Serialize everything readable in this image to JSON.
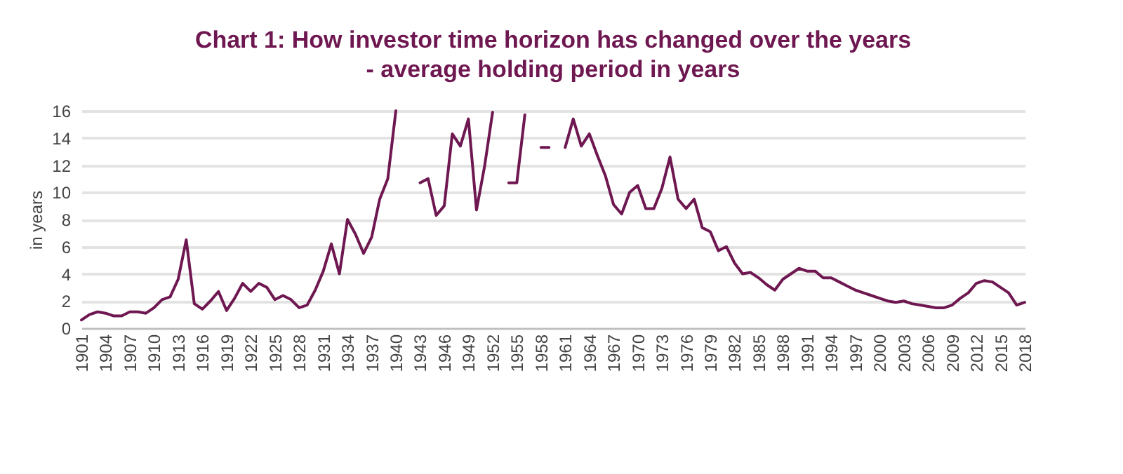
{
  "chart_data": {
    "type": "line",
    "title": "Chart 1: How investor time horizon has changed over the years",
    "subtitle": "- average holding period in years",
    "ylabel": "in years",
    "x": [
      1901,
      1902,
      1903,
      1904,
      1905,
      1906,
      1907,
      1908,
      1909,
      1910,
      1911,
      1912,
      1913,
      1914,
      1915,
      1916,
      1917,
      1918,
      1919,
      1920,
      1921,
      1922,
      1923,
      1924,
      1925,
      1926,
      1927,
      1928,
      1929,
      1930,
      1931,
      1932,
      1933,
      1934,
      1935,
      1936,
      1937,
      1938,
      1939,
      1940,
      1941,
      1942,
      1943,
      1944,
      1945,
      1946,
      1947,
      1948,
      1949,
      1950,
      1951,
      1952,
      1953,
      1954,
      1955,
      1956,
      1957,
      1958,
      1959,
      1960,
      1961,
      1962,
      1963,
      1964,
      1965,
      1966,
      1967,
      1968,
      1969,
      1970,
      1971,
      1972,
      1973,
      1974,
      1975,
      1976,
      1977,
      1978,
      1979,
      1980,
      1981,
      1982,
      1983,
      1984,
      1985,
      1986,
      1987,
      1988,
      1989,
      1990,
      1991,
      1992,
      1993,
      1994,
      1995,
      1996,
      1997,
      1998,
      1999,
      2000,
      2001,
      2002,
      2003,
      2004,
      2005,
      2006,
      2007,
      2008,
      2009,
      2010,
      2011,
      2012,
      2013,
      2014,
      2015,
      2016,
      2017,
      2018
    ],
    "series": [
      {
        "color": "#6e1750",
        "values": [
          0.6,
          1.0,
          1.2,
          1.1,
          0.9,
          0.9,
          1.2,
          1.2,
          1.1,
          1.5,
          2.1,
          2.3,
          3.6,
          6.5,
          1.8,
          1.4,
          2.0,
          2.7,
          1.3,
          2.2,
          3.3,
          2.7,
          3.3,
          3.0,
          2.1,
          2.4,
          2.1,
          1.5,
          1.7,
          2.8,
          4.2,
          6.2,
          4.0,
          8.0,
          6.9,
          5.5,
          6.7,
          9.5,
          11.0,
          16.0,
          null,
          null,
          10.7,
          11.0,
          8.3,
          9.0,
          14.3,
          13.4,
          15.4,
          8.7,
          11.9,
          15.9,
          null,
          10.7,
          10.7,
          15.7,
          null,
          13.3,
          13.3,
          null,
          13.3,
          15.4,
          13.4,
          14.3,
          12.7,
          11.2,
          9.1,
          8.4,
          10.0,
          10.5,
          8.8,
          8.8,
          10.3,
          12.6,
          9.5,
          8.8,
          9.5,
          7.4,
          7.1,
          5.7,
          6.0,
          4.8,
          4.0,
          4.1,
          3.7,
          3.2,
          2.8,
          3.6,
          4.0,
          4.4,
          4.2,
          4.2,
          3.7,
          3.7,
          3.4,
          3.1,
          2.8,
          2.6,
          2.4,
          2.2,
          2.0,
          1.9,
          2.0,
          1.8,
          1.7,
          1.6,
          1.5,
          1.5,
          1.7,
          2.2,
          2.6,
          3.3,
          3.5,
          3.4,
          3.0,
          2.6,
          1.7,
          1.9
        ]
      }
    ],
    "xlim": [
      1901,
      2018
    ],
    "xticks": [
      1901,
      1904,
      1907,
      1910,
      1913,
      1916,
      1919,
      1922,
      1925,
      1928,
      1931,
      1934,
      1937,
      1940,
      1943,
      1946,
      1949,
      1952,
      1955,
      1958,
      1961,
      1964,
      1967,
      1970,
      1973,
      1976,
      1979,
      1982,
      1985,
      1988,
      1991,
      1994,
      1997,
      2000,
      2003,
      2006,
      2009,
      2012,
      2015,
      2018
    ],
    "ylim": [
      0,
      16
    ],
    "yticks": [
      0,
      2,
      4,
      6,
      8,
      10,
      12,
      14,
      16
    ],
    "grid": "y",
    "marker": "none",
    "line_style": "solid"
  }
}
